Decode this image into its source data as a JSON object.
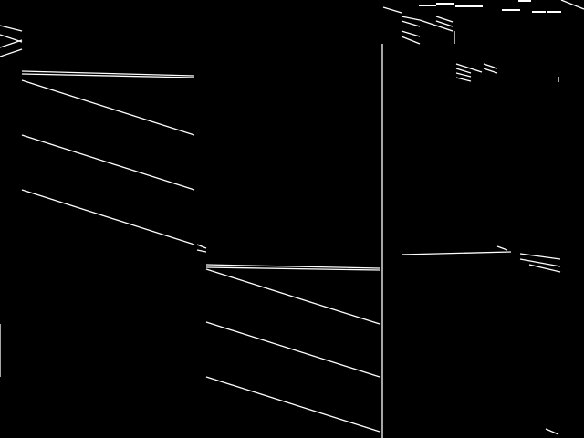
{
  "colors": {
    "background": "#000000",
    "stroke": "#ffffff"
  }
}
